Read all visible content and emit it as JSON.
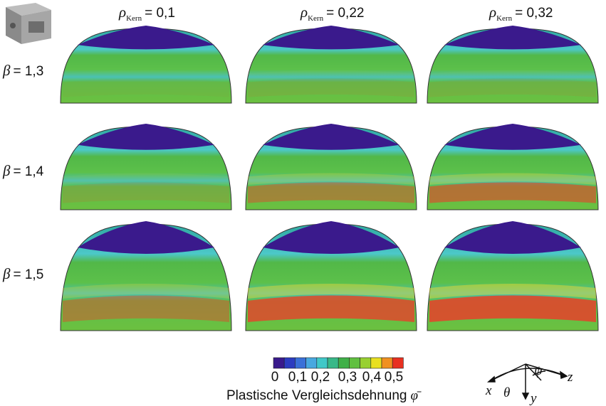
{
  "header": {
    "columns": [
      {
        "symbol": "ρ",
        "subscript": "Kern",
        "value": "= 0,1"
      },
      {
        "symbol": "ρ",
        "subscript": "Kern",
        "value": "= 0,22"
      },
      {
        "symbol": "ρ",
        "subscript": "Kern",
        "value": "= 0,32"
      }
    ]
  },
  "rows": [
    {
      "symbol": "β",
      "value": "= 1,3"
    },
    {
      "symbol": "β",
      "value": "= 1,4"
    },
    {
      "symbol": "β",
      "value": "= 1,5"
    }
  ],
  "legend": {
    "ticks": [
      "0",
      "0,1",
      "0,2",
      "0,3",
      "0,4",
      "0,5"
    ],
    "title": "Plastische Vergleichsdehnung",
    "title_symbol": "φ̄"
  },
  "axes": {
    "x": "x",
    "theta": "θ",
    "y": "y",
    "z": "z",
    "psi": "ψ"
  }
}
